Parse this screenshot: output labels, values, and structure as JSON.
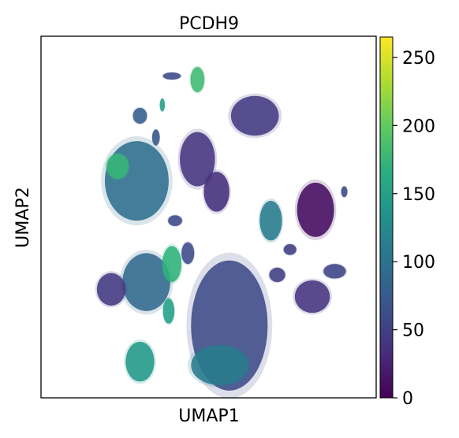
{
  "chart_data": {
    "type": "scatter",
    "title": "PCDH9",
    "xlabel": "UMAP1",
    "ylabel": "UMAP2",
    "colorbar": {
      "colormap": "viridis",
      "range": [
        0,
        265
      ],
      "ticks": [
        0,
        50,
        100,
        150,
        200,
        250
      ],
      "tick_labels": [
        "0",
        "50",
        "100",
        "150",
        "200",
        "250"
      ]
    },
    "x_ticks_visible": false,
    "y_ticks_visible": false,
    "clusters": [
      {
        "id": "c01",
        "x": 4.1,
        "y": 8.9,
        "rx": 0.28,
        "ry": 0.1,
        "level": 60
      },
      {
        "id": "c02",
        "x": 4.9,
        "y": 8.8,
        "rx": 0.22,
        "ry": 0.35,
        "level": 180
      },
      {
        "id": "c03",
        "x": 3.1,
        "y": 7.8,
        "rx": 0.22,
        "ry": 0.22,
        "level": 80
      },
      {
        "id": "c04",
        "x": 3.8,
        "y": 8.1,
        "rx": 0.08,
        "ry": 0.18,
        "level": 150
      },
      {
        "id": "c05",
        "x": 3.6,
        "y": 7.2,
        "rx": 0.12,
        "ry": 0.22,
        "level": 70
      },
      {
        "id": "c06",
        "x": 6.7,
        "y": 7.8,
        "rx": 0.75,
        "ry": 0.55,
        "level": 45
      },
      {
        "id": "c07",
        "x": 4.9,
        "y": 6.6,
        "rx": 0.55,
        "ry": 0.75,
        "level": 40
      },
      {
        "id": "c08",
        "x": 5.5,
        "y": 5.7,
        "rx": 0.4,
        "ry": 0.55,
        "level": 35
      },
      {
        "id": "c09",
        "x": 3.0,
        "y": 6.0,
        "rx": 1.0,
        "ry": 1.1,
        "level": 95
      },
      {
        "id": "c10",
        "x": 2.4,
        "y": 6.4,
        "rx": 0.35,
        "ry": 0.35,
        "level": 175
      },
      {
        "id": "c11",
        "x": 7.2,
        "y": 4.9,
        "rx": 0.35,
        "ry": 0.55,
        "level": 110
      },
      {
        "id": "c12",
        "x": 8.6,
        "y": 5.2,
        "rx": 0.58,
        "ry": 0.75,
        "level": 10
      },
      {
        "id": "c13",
        "x": 9.5,
        "y": 5.7,
        "rx": 0.1,
        "ry": 0.15,
        "level": 60
      },
      {
        "id": "c14",
        "x": 4.2,
        "y": 4.9,
        "rx": 0.22,
        "ry": 0.15,
        "level": 60
      },
      {
        "id": "c15",
        "x": 3.3,
        "y": 3.2,
        "rx": 0.75,
        "ry": 0.8,
        "level": 90
      },
      {
        "id": "c16",
        "x": 2.2,
        "y": 3.0,
        "rx": 0.45,
        "ry": 0.45,
        "level": 45
      },
      {
        "id": "c17",
        "x": 4.1,
        "y": 3.7,
        "rx": 0.3,
        "ry": 0.5,
        "level": 170
      },
      {
        "id": "c18",
        "x": 4.6,
        "y": 4.0,
        "rx": 0.2,
        "ry": 0.3,
        "level": 60
      },
      {
        "id": "c19",
        "x": 5.9,
        "y": 2.0,
        "rx": 1.2,
        "ry": 1.8,
        "level": 60
      },
      {
        "id": "c20",
        "x": 5.6,
        "y": 0.9,
        "rx": 0.9,
        "ry": 0.55,
        "level": 110
      },
      {
        "id": "c21",
        "x": 4.0,
        "y": 2.4,
        "rx": 0.18,
        "ry": 0.35,
        "level": 150
      },
      {
        "id": "c22",
        "x": 3.1,
        "y": 1.0,
        "rx": 0.45,
        "ry": 0.55,
        "level": 140
      },
      {
        "id": "c23",
        "x": 7.4,
        "y": 3.4,
        "rx": 0.25,
        "ry": 0.2,
        "level": 50
      },
      {
        "id": "c24",
        "x": 8.5,
        "y": 2.8,
        "rx": 0.55,
        "ry": 0.45,
        "level": 40
      },
      {
        "id": "c25",
        "x": 9.2,
        "y": 3.5,
        "rx": 0.35,
        "ry": 0.2,
        "level": 55
      },
      {
        "id": "c26",
        "x": 7.8,
        "y": 4.1,
        "rx": 0.2,
        "ry": 0.15,
        "level": 50
      }
    ]
  }
}
